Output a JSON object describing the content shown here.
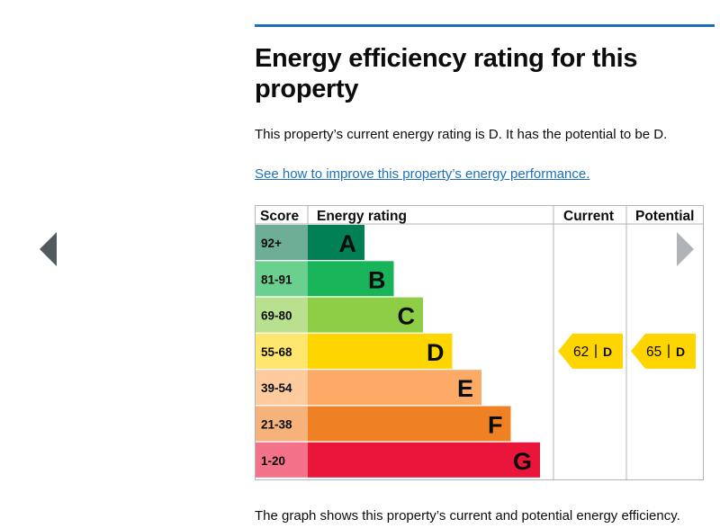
{
  "page": {
    "heading": "Energy efficiency rating for this property",
    "summary": "This property’s current energy rating is D. It has the potential to be D.",
    "improve_link": "See how to improve this property’s energy performance.",
    "footnote": "The graph shows this property’s current and potential energy efficiency."
  },
  "navigation": {
    "previous_icon": "chevron-left-icon",
    "next_icon": "chevron-right-icon"
  },
  "chart_data": {
    "type": "table",
    "columns": [
      "Score",
      "Energy rating",
      "Current",
      "Potential"
    ],
    "bands": [
      {
        "score": "92+",
        "letter": "A",
        "color": "#008054",
        "score_bg": "#6fae96"
      },
      {
        "score": "81-91",
        "letter": "B",
        "color": "#19b459",
        "score_bg": "#6bd08f"
      },
      {
        "score": "69-80",
        "letter": "C",
        "color": "#8dce46",
        "score_bg": "#b9e08e"
      },
      {
        "score": "55-68",
        "letter": "D",
        "color": "#ffd500",
        "score_bg": "#ffe66f"
      },
      {
        "score": "39-54",
        "letter": "E",
        "color": "#fcaa65",
        "score_bg": "#fdcb9e"
      },
      {
        "score": "21-38",
        "letter": "F",
        "color": "#ef8023",
        "score_bg": "#f5b27a"
      },
      {
        "score": "1-20",
        "letter": "G",
        "color": "#e9153b",
        "score_bg": "#f27389"
      }
    ],
    "current": {
      "value": 62,
      "letter": "D"
    },
    "potential": {
      "value": 65,
      "letter": "D"
    },
    "marker_color": "#ffd500"
  }
}
